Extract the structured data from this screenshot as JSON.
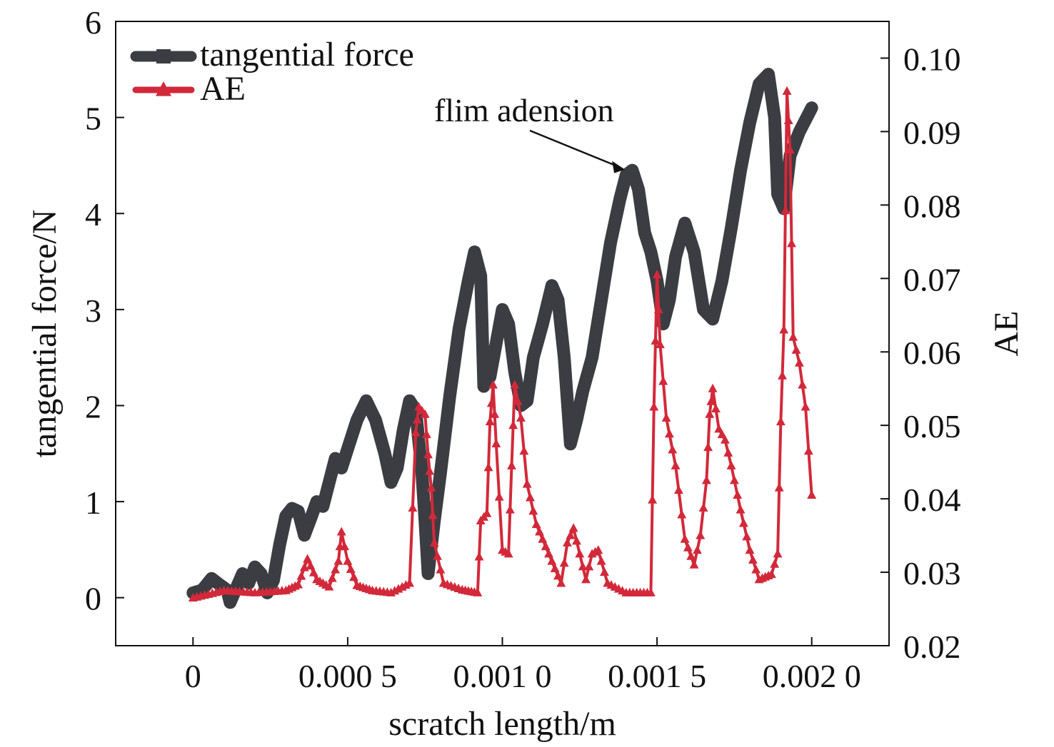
{
  "chart_data": {
    "type": "line",
    "title": "",
    "xlabel": "scratch length/m",
    "ylabel": "tangential force/N",
    "y2label": "AE",
    "xlim": [
      -0.00025,
      0.00225
    ],
    "ylim": [
      -0.5,
      6
    ],
    "y2lim": [
      0.02,
      0.105
    ],
    "xticks": [
      0,
      0.0005,
      0.001,
      0.0015,
      0.002
    ],
    "xtick_labels": [
      "0",
      "0.000 5",
      "0.001 0",
      "0.001 5",
      "0.002 0"
    ],
    "yticks": [
      0,
      1,
      2,
      3,
      4,
      5,
      6
    ],
    "ytick_labels": [
      "0",
      "1",
      "2",
      "3",
      "4",
      "5",
      "6"
    ],
    "y2ticks": [
      0.02,
      0.03,
      0.04,
      0.05,
      0.06,
      0.07,
      0.08,
      0.09,
      0.1
    ],
    "y2tick_labels": [
      "0.02",
      "0.03",
      "0.04",
      "0.05",
      "0.06",
      "0.07",
      "0.08",
      "0.09",
      "0.10"
    ],
    "grid": false,
    "legend_position": "top-left",
    "annotation": {
      "text": "flim adension",
      "x": 0.00141,
      "y": 4.45
    },
    "series": [
      {
        "name": "tangential force",
        "axis": "left",
        "color": "#3b3d42",
        "marker": "square",
        "points": [
          [
            0,
            0.05
          ],
          [
            3e-05,
            0.08
          ],
          [
            6e-05,
            0.2
          ],
          [
            8e-05,
            0.15
          ],
          [
            0.00011,
            0.08
          ],
          [
            0.00012,
            -0.05
          ],
          [
            0.00014,
            0.1
          ],
          [
            0.00016,
            0.25
          ],
          [
            0.00018,
            0.15
          ],
          [
            0.0002,
            0.32
          ],
          [
            0.00022,
            0.25
          ],
          [
            0.00024,
            0.05
          ],
          [
            0.00026,
            0.18
          ],
          [
            0.00028,
            0.55
          ],
          [
            0.0003,
            0.85
          ],
          [
            0.00032,
            0.93
          ],
          [
            0.00034,
            0.9
          ],
          [
            0.00036,
            0.65
          ],
          [
            0.00038,
            0.82
          ],
          [
            0.0004,
            1.0
          ],
          [
            0.00042,
            0.95
          ],
          [
            0.00044,
            1.2
          ],
          [
            0.00046,
            1.45
          ],
          [
            0.00048,
            1.35
          ],
          [
            0.0005,
            1.55
          ],
          [
            0.00053,
            1.85
          ],
          [
            0.00056,
            2.05
          ],
          [
            0.00059,
            1.85
          ],
          [
            0.00062,
            1.5
          ],
          [
            0.00064,
            1.2
          ],
          [
            0.00066,
            1.35
          ],
          [
            0.00068,
            1.75
          ],
          [
            0.0007,
            2.05
          ],
          [
            0.00072,
            1.95
          ],
          [
            0.00074,
            1.3
          ],
          [
            0.00075,
            0.8
          ],
          [
            0.00076,
            0.25
          ],
          [
            0.00078,
            0.8
          ],
          [
            0.0008,
            1.3
          ],
          [
            0.00083,
            2.1
          ],
          [
            0.00086,
            2.8
          ],
          [
            0.00089,
            3.3
          ],
          [
            0.00091,
            3.6
          ],
          [
            0.00093,
            3.35
          ],
          [
            0.00094,
            2.2
          ],
          [
            0.00096,
            2.3
          ],
          [
            0.00098,
            2.65
          ],
          [
            0.001,
            3.0
          ],
          [
            0.00102,
            2.85
          ],
          [
            0.00104,
            2.35
          ],
          [
            0.00106,
            2.0
          ],
          [
            0.00108,
            2.05
          ],
          [
            0.0011,
            2.5
          ],
          [
            0.00113,
            2.85
          ],
          [
            0.00116,
            3.25
          ],
          [
            0.00118,
            3.1
          ],
          [
            0.0012,
            2.5
          ],
          [
            0.00122,
            1.6
          ],
          [
            0.00124,
            1.85
          ],
          [
            0.00126,
            2.15
          ],
          [
            0.00129,
            2.5
          ],
          [
            0.00132,
            3.1
          ],
          [
            0.00135,
            3.7
          ],
          [
            0.00138,
            4.15
          ],
          [
            0.0014,
            4.4
          ],
          [
            0.00142,
            4.45
          ],
          [
            0.00144,
            4.25
          ],
          [
            0.00146,
            3.8
          ],
          [
            0.00148,
            3.6
          ],
          [
            0.0015,
            3.3
          ],
          [
            0.00152,
            2.85
          ],
          [
            0.00154,
            3.1
          ],
          [
            0.00156,
            3.55
          ],
          [
            0.00159,
            3.9
          ],
          [
            0.00162,
            3.6
          ],
          [
            0.00165,
            3.0
          ],
          [
            0.00168,
            2.9
          ],
          [
            0.00171,
            3.3
          ],
          [
            0.00174,
            3.85
          ],
          [
            0.00177,
            4.45
          ],
          [
            0.0018,
            4.95
          ],
          [
            0.00183,
            5.35
          ],
          [
            0.00186,
            5.45
          ],
          [
            0.00188,
            5.0
          ],
          [
            0.00189,
            4.2
          ],
          [
            0.00191,
            4.05
          ],
          [
            0.00193,
            4.6
          ],
          [
            0.00196,
            4.85
          ],
          [
            0.002,
            5.1
          ]
        ]
      },
      {
        "name": "AE",
        "axis": "right",
        "color": "#d2293a",
        "marker": "triangle",
        "points": [
          [
            0,
            0.0265
          ],
          [
            0.0001,
            0.0275
          ],
          [
            0.0002,
            0.0272
          ],
          [
            0.0003,
            0.0275
          ],
          [
            0.00034,
            0.0283
          ],
          [
            0.00037,
            0.0318
          ],
          [
            0.0004,
            0.029
          ],
          [
            0.00044,
            0.028
          ],
          [
            0.00047,
            0.0315
          ],
          [
            0.00048,
            0.0355
          ],
          [
            0.0005,
            0.0315
          ],
          [
            0.00053,
            0.0282
          ],
          [
            0.00058,
            0.0275
          ],
          [
            0.00064,
            0.0272
          ],
          [
            0.0007,
            0.0285
          ],
          [
            0.00072,
            0.049
          ],
          [
            0.00073,
            0.0525
          ],
          [
            0.00075,
            0.0515
          ],
          [
            0.00076,
            0.046
          ],
          [
            0.00077,
            0.0415
          ],
          [
            0.00078,
            0.034
          ],
          [
            0.00081,
            0.0285
          ],
          [
            0.00087,
            0.0276
          ],
          [
            0.00092,
            0.0272
          ],
          [
            0.00093,
            0.037
          ],
          [
            0.00095,
            0.038
          ],
          [
            0.00096,
            0.0505
          ],
          [
            0.00097,
            0.0555
          ],
          [
            0.00098,
            0.0475
          ],
          [
            0.001,
            0.033
          ],
          [
            0.00102,
            0.0325
          ],
          [
            0.00103,
            0.0445
          ],
          [
            0.00104,
            0.0555
          ],
          [
            0.00106,
            0.051
          ],
          [
            0.00108,
            0.042
          ],
          [
            0.00111,
            0.0365
          ],
          [
            0.00115,
            0.0325
          ],
          [
            0.00119,
            0.0285
          ],
          [
            0.00121,
            0.034
          ],
          [
            0.00123,
            0.036
          ],
          [
            0.00125,
            0.0325
          ],
          [
            0.00127,
            0.029
          ],
          [
            0.00129,
            0.0325
          ],
          [
            0.00131,
            0.033
          ],
          [
            0.00134,
            0.0285
          ],
          [
            0.0014,
            0.0272
          ],
          [
            0.00148,
            0.0272
          ],
          [
            0.00149,
            0.0525
          ],
          [
            0.0015,
            0.0705
          ],
          [
            0.00151,
            0.061
          ],
          [
            0.00153,
            0.051
          ],
          [
            0.00156,
            0.0445
          ],
          [
            0.00159,
            0.0345
          ],
          [
            0.00162,
            0.031
          ],
          [
            0.00164,
            0.035
          ],
          [
            0.00166,
            0.0425
          ],
          [
            0.00167,
            0.0515
          ],
          [
            0.00168,
            0.055
          ],
          [
            0.0017,
            0.0495
          ],
          [
            0.00172,
            0.048
          ],
          [
            0.00174,
            0.0445
          ],
          [
            0.00177,
            0.0385
          ],
          [
            0.0018,
            0.033
          ],
          [
            0.00183,
            0.029
          ],
          [
            0.00187,
            0.0297
          ],
          [
            0.00189,
            0.0325
          ],
          [
            0.0019,
            0.0505
          ],
          [
            0.00191,
            0.063
          ],
          [
            0.00192,
            0.0955
          ],
          [
            0.00193,
            0.0875
          ],
          [
            0.00194,
            0.062
          ],
          [
            0.00196,
            0.0585
          ],
          [
            0.00198,
            0.0525
          ],
          [
            0.002,
            0.0405
          ]
        ]
      }
    ]
  }
}
